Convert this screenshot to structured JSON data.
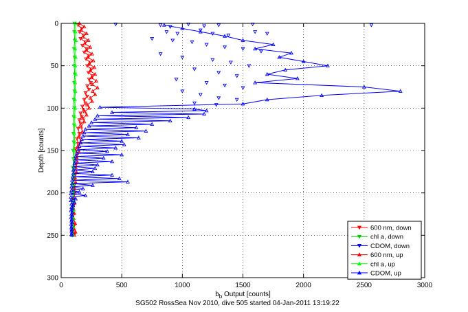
{
  "caption": "SG502 RossSea Nov 2010, dive 505 started 04-Jan-2011 13:19:22",
  "chart_data": {
    "type": "scatter",
    "title": "",
    "xlabel_main": "b",
    "xlabel_sub": "b",
    "xlabel_rest": " Output [counts]",
    "ylabel": "Depth [counts]",
    "xlim": [
      0,
      3000
    ],
    "ylim": [
      0,
      300
    ],
    "y_reversed": true,
    "grid": true,
    "legend_position": "bottom-right",
    "x_ticks": [
      0,
      500,
      1000,
      1500,
      2000,
      2500,
      3000
    ],
    "y_ticks": [
      0,
      50,
      100,
      150,
      200,
      250,
      300
    ],
    "x_tick_labels": [
      "0",
      "500",
      "1000",
      "1500",
      "2000",
      "2500",
      "3000"
    ],
    "y_tick_labels": [
      "0",
      "50",
      "100",
      "150",
      "200",
      "250",
      "300"
    ],
    "series": [
      {
        "name": "600 nm, down",
        "color": "#ff0000",
        "marker": "triangle-down",
        "connected": true,
        "points": [
          [
            140,
            2
          ],
          [
            170,
            6
          ],
          [
            150,
            10
          ],
          [
            185,
            14
          ],
          [
            160,
            18
          ],
          [
            200,
            22
          ],
          [
            175,
            26
          ],
          [
            210,
            30
          ],
          [
            190,
            34
          ],
          [
            230,
            38
          ],
          [
            205,
            42
          ],
          [
            240,
            46
          ],
          [
            215,
            50
          ],
          [
            250,
            54
          ],
          [
            225,
            58
          ],
          [
            260,
            62
          ],
          [
            230,
            66
          ],
          [
            245,
            70
          ],
          [
            215,
            74
          ],
          [
            230,
            78
          ],
          [
            200,
            82
          ],
          [
            215,
            86
          ],
          [
            190,
            90
          ],
          [
            200,
            94
          ],
          [
            175,
            98
          ],
          [
            185,
            102
          ],
          [
            160,
            106
          ],
          [
            170,
            110
          ],
          [
            150,
            114
          ],
          [
            160,
            118
          ],
          [
            140,
            124
          ],
          [
            150,
            130
          ],
          [
            130,
            136
          ],
          [
            140,
            142
          ],
          [
            120,
            148
          ],
          [
            130,
            154
          ],
          [
            115,
            160
          ],
          [
            125,
            166
          ],
          [
            110,
            172
          ],
          [
            118,
            178
          ],
          [
            105,
            184
          ],
          [
            112,
            190
          ],
          [
            100,
            196
          ],
          [
            108,
            202
          ],
          [
            98,
            208
          ],
          [
            105,
            214
          ],
          [
            95,
            220
          ],
          [
            102,
            226
          ],
          [
            96,
            232
          ],
          [
            110,
            238
          ],
          [
            100,
            244
          ],
          [
            112,
            248
          ]
        ]
      },
      {
        "name": "chl a, down",
        "color": "#00cc00",
        "marker": "triangle-down",
        "connected": true,
        "points": [
          [
            110,
            0
          ],
          [
            108,
            10
          ],
          [
            112,
            20
          ],
          [
            106,
            30
          ],
          [
            110,
            40
          ],
          [
            108,
            50
          ],
          [
            112,
            60
          ],
          [
            107,
            70
          ],
          [
            110,
            80
          ],
          [
            105,
            90
          ],
          [
            108,
            100
          ],
          [
            103,
            110
          ],
          [
            106,
            120
          ],
          [
            101,
            130
          ],
          [
            104,
            140
          ],
          [
            99,
            150
          ],
          [
            102,
            160
          ],
          [
            97,
            170
          ],
          [
            100,
            180
          ],
          [
            95,
            190
          ],
          [
            98,
            200
          ],
          [
            94,
            210
          ],
          [
            96,
            220
          ],
          [
            93,
            230
          ],
          [
            95,
            240
          ],
          [
            94,
            250
          ]
        ]
      },
      {
        "name": "CDOM, down",
        "color": "#0000ff",
        "marker": "triangle-down",
        "connected": false,
        "points": [
          [
            450,
            1
          ],
          [
            820,
            2
          ],
          [
            900,
            4
          ],
          [
            1050,
            1
          ],
          [
            1180,
            3
          ],
          [
            1300,
            2
          ],
          [
            1580,
            1
          ],
          [
            2560,
            2
          ],
          [
            870,
            10
          ],
          [
            960,
            12
          ],
          [
            1150,
            8
          ],
          [
            1250,
            12
          ],
          [
            1380,
            14
          ],
          [
            1600,
            10
          ],
          [
            1700,
            12
          ],
          [
            750,
            18
          ],
          [
            920,
            20
          ],
          [
            1080,
            22
          ],
          [
            1200,
            25
          ],
          [
            1350,
            28
          ],
          [
            1500,
            30
          ],
          [
            1650,
            33
          ],
          [
            820,
            36
          ],
          [
            1000,
            40
          ],
          [
            1250,
            43
          ],
          [
            1400,
            46
          ],
          [
            1550,
            50
          ],
          [
            1100,
            54
          ],
          [
            1300,
            58
          ],
          [
            1450,
            62
          ],
          [
            950,
            66
          ],
          [
            1200,
            70
          ],
          [
            1350,
            73
          ],
          [
            1500,
            76
          ],
          [
            1000,
            80
          ],
          [
            1150,
            84
          ],
          [
            1300,
            88
          ],
          [
            1450,
            90
          ],
          [
            1100,
            94
          ],
          [
            1280,
            96
          ]
        ]
      },
      {
        "name": "600 nm, up",
        "color": "#ff0000",
        "marker": "triangle-up",
        "connected": true,
        "points": [
          [
            150,
            0
          ],
          [
            190,
            4
          ],
          [
            165,
            8
          ],
          [
            210,
            12
          ],
          [
            180,
            16
          ],
          [
            225,
            20
          ],
          [
            195,
            24
          ],
          [
            240,
            28
          ],
          [
            210,
            32
          ],
          [
            255,
            36
          ],
          [
            220,
            40
          ],
          [
            265,
            44
          ],
          [
            230,
            48
          ],
          [
            275,
            52
          ],
          [
            240,
            56
          ],
          [
            280,
            60
          ],
          [
            250,
            64
          ],
          [
            290,
            68
          ],
          [
            255,
            72
          ],
          [
            300,
            76
          ],
          [
            260,
            80
          ],
          [
            280,
            84
          ],
          [
            240,
            88
          ],
          [
            255,
            92
          ],
          [
            215,
            96
          ],
          [
            230,
            100
          ],
          [
            195,
            104
          ],
          [
            210,
            108
          ],
          [
            180,
            112
          ],
          [
            190,
            116
          ],
          [
            165,
            122
          ],
          [
            175,
            128
          ],
          [
            150,
            134
          ],
          [
            160,
            140
          ],
          [
            140,
            146
          ],
          [
            148,
            152
          ],
          [
            128,
            158
          ],
          [
            135,
            164
          ],
          [
            120,
            170
          ],
          [
            128,
            176
          ],
          [
            115,
            182
          ],
          [
            122,
            188
          ],
          [
            108,
            194
          ],
          [
            115,
            200
          ],
          [
            104,
            206
          ],
          [
            110,
            212
          ],
          [
            100,
            218
          ],
          [
            108,
            224
          ],
          [
            103,
            230
          ],
          [
            115,
            236
          ],
          [
            105,
            242
          ],
          [
            118,
            246
          ],
          [
            110,
            250
          ]
        ]
      },
      {
        "name": "chl a, up",
        "color": "#00ff00",
        "marker": "triangle-up",
        "connected": true,
        "points": [
          [
            120,
            0
          ],
          [
            118,
            10
          ],
          [
            122,
            20
          ],
          [
            116,
            30
          ],
          [
            120,
            40
          ],
          [
            117,
            50
          ],
          [
            121,
            60
          ],
          [
            115,
            70
          ],
          [
            118,
            80
          ],
          [
            113,
            90
          ],
          [
            116,
            100
          ],
          [
            111,
            110
          ],
          [
            114,
            120
          ],
          [
            109,
            130
          ],
          [
            112,
            140
          ],
          [
            107,
            150
          ],
          [
            110,
            160
          ],
          [
            105,
            170
          ],
          [
            108,
            180
          ],
          [
            103,
            190
          ],
          [
            106,
            200
          ],
          [
            101,
            210
          ],
          [
            104,
            220
          ],
          [
            100,
            230
          ],
          [
            102,
            240
          ],
          [
            100,
            250
          ]
        ]
      },
      {
        "name": "CDOM, up",
        "color": "#0000ff",
        "marker": "triangle-up",
        "connected": true,
        "points": [
          [
            850,
            2
          ],
          [
            1000,
            6
          ],
          [
            1150,
            10
          ],
          [
            1350,
            15
          ],
          [
            1500,
            20
          ],
          [
            1750,
            25
          ],
          [
            1600,
            30
          ],
          [
            1900,
            35
          ],
          [
            1800,
            40
          ],
          [
            2000,
            45
          ],
          [
            2200,
            50
          ],
          [
            1850,
            55
          ],
          [
            1700,
            60
          ],
          [
            1950,
            65
          ],
          [
            1600,
            70
          ],
          [
            2500,
            75
          ],
          [
            2800,
            80
          ],
          [
            2150,
            85
          ],
          [
            1700,
            90
          ],
          [
            1500,
            95
          ],
          [
            320,
            99
          ],
          [
            1100,
            101
          ],
          [
            1200,
            103
          ],
          [
            420,
            105
          ],
          [
            1180,
            107
          ],
          [
            300,
            109
          ],
          [
            1050,
            111
          ],
          [
            280,
            113
          ],
          [
            900,
            115
          ],
          [
            250,
            117
          ],
          [
            750,
            119
          ],
          [
            230,
            121
          ],
          [
            620,
            123
          ],
          [
            200,
            125
          ],
          [
            700,
            127
          ],
          [
            190,
            129
          ],
          [
            550,
            131
          ],
          [
            180,
            133
          ],
          [
            640,
            135
          ],
          [
            170,
            137
          ],
          [
            500,
            139
          ],
          [
            160,
            141
          ],
          [
            520,
            143
          ],
          [
            150,
            145
          ],
          [
            450,
            147
          ],
          [
            140,
            149
          ],
          [
            380,
            151
          ],
          [
            130,
            153
          ],
          [
            500,
            155
          ],
          [
            120,
            157
          ],
          [
            350,
            159
          ],
          [
            115,
            161
          ],
          [
            420,
            163
          ],
          [
            110,
            165
          ],
          [
            300,
            167
          ],
          [
            105,
            169
          ],
          [
            280,
            171
          ],
          [
            100,
            173
          ],
          [
            260,
            175
          ],
          [
            100,
            177
          ],
          [
            420,
            179
          ],
          [
            95,
            181
          ],
          [
            480,
            183
          ],
          [
            90,
            185
          ],
          [
            550,
            187
          ],
          [
            90,
            189
          ],
          [
            260,
            191
          ],
          [
            85,
            193
          ],
          [
            180,
            195
          ],
          [
            85,
            197
          ],
          [
            150,
            199
          ],
          [
            80,
            201
          ],
          [
            200,
            203
          ],
          [
            80,
            205
          ],
          [
            120,
            207
          ],
          [
            80,
            209
          ],
          [
            110,
            211
          ],
          [
            85,
            213
          ],
          [
            100,
            215
          ],
          [
            85,
            217
          ],
          [
            95,
            219
          ],
          [
            80,
            221
          ],
          [
            92,
            223
          ],
          [
            85,
            225
          ],
          [
            90,
            227
          ],
          [
            82,
            229
          ],
          [
            88,
            231
          ],
          [
            85,
            233
          ],
          [
            90,
            235
          ],
          [
            82,
            237
          ],
          [
            88,
            239
          ],
          [
            84,
            241
          ],
          [
            88,
            243
          ],
          [
            85,
            245
          ],
          [
            88,
            247
          ],
          [
            86,
            249
          ],
          [
            90,
            250
          ]
        ]
      }
    ]
  }
}
